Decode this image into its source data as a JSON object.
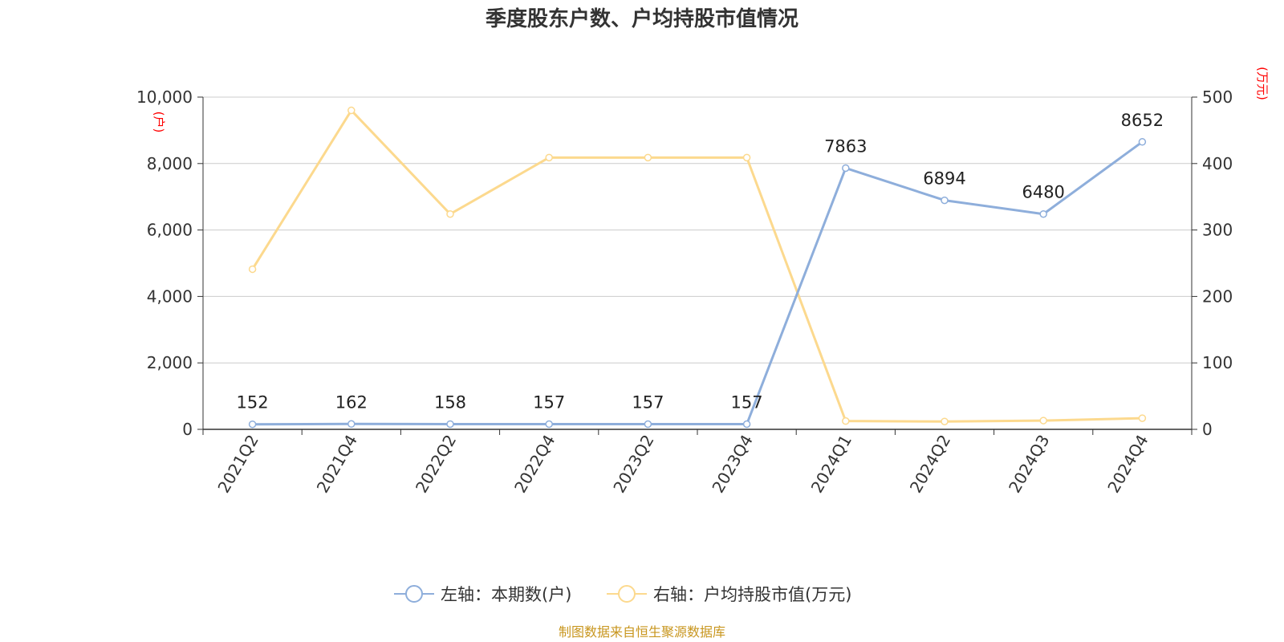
{
  "chart_data": {
    "type": "line",
    "title": "季度股东户数、户均持股市值情况",
    "categories": [
      "2021Q2",
      "2021Q4",
      "2022Q2",
      "2022Q4",
      "2023Q2",
      "2023Q4",
      "2024Q1",
      "2024Q2",
      "2024Q3",
      "2024Q4"
    ],
    "left_axis": {
      "unit": "(户)",
      "range": [
        0,
        10000
      ],
      "ticks": [
        "0",
        "2,000",
        "4,000",
        "6,000",
        "8,000",
        "10,000"
      ]
    },
    "right_axis": {
      "unit": "(万元)",
      "range": [
        0,
        500
      ],
      "ticks": [
        "0",
        "100",
        "200",
        "300",
        "400",
        "500"
      ]
    },
    "series": [
      {
        "name": "左轴：本期数(户)",
        "axis": "left",
        "color": "#8eaedb",
        "values": [
          152,
          162,
          158,
          157,
          157,
          157,
          7863,
          6894,
          6480,
          8652
        ],
        "labels": [
          "152",
          "162",
          "158",
          "157",
          "157",
          "157",
          "7863",
          "6894",
          "6480",
          "8652"
        ]
      },
      {
        "name": "右轴：户均持股市值(万元)",
        "axis": "right",
        "color": "#fcd98e",
        "values": [
          241,
          480,
          324,
          409,
          409,
          409,
          12.5,
          11.8,
          13.2,
          16.8
        ]
      }
    ],
    "grid": true,
    "legend_position": "bottom-center"
  },
  "source_note": "制图数据来自恒生聚源数据库"
}
